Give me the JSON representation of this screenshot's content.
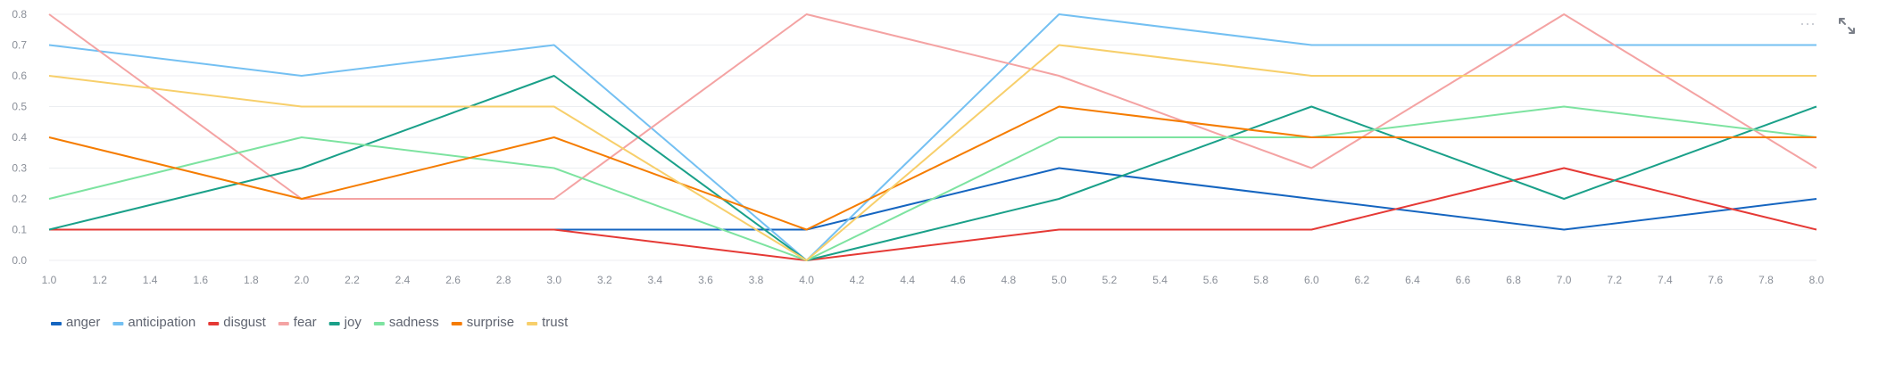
{
  "chart_data": {
    "type": "line",
    "x": [
      1,
      2,
      3,
      4,
      5,
      6,
      7,
      8
    ],
    "xlim": [
      1.0,
      8.0
    ],
    "ylim": [
      0.0,
      0.8
    ],
    "x_ticks": [
      "1.0",
      "1.2",
      "1.4",
      "1.6",
      "1.8",
      "2.0",
      "2.2",
      "2.4",
      "2.6",
      "2.8",
      "3.0",
      "3.2",
      "3.4",
      "3.6",
      "3.8",
      "4.0",
      "4.2",
      "4.4",
      "4.6",
      "4.8",
      "5.0",
      "5.2",
      "5.4",
      "5.6",
      "5.8",
      "6.0",
      "6.2",
      "6.4",
      "6.6",
      "6.8",
      "7.0",
      "7.2",
      "7.4",
      "7.6",
      "7.8",
      "8.0"
    ],
    "y_ticks": [
      "0.0",
      "0.1",
      "0.2",
      "0.3",
      "0.4",
      "0.5",
      "0.6",
      "0.7",
      "0.8"
    ],
    "grid": "horizontal",
    "legend_position": "bottom-left",
    "series": [
      {
        "name": "anger",
        "color": "#1565c0",
        "values": [
          0.1,
          0.1,
          0.1,
          0.1,
          0.3,
          0.2,
          0.1,
          0.2
        ]
      },
      {
        "name": "anticipation",
        "color": "#74c0f2",
        "values": [
          0.7,
          0.6,
          0.7,
          0.0,
          0.8,
          0.7,
          0.7,
          0.7
        ]
      },
      {
        "name": "disgust",
        "color": "#e53935",
        "values": [
          0.1,
          0.1,
          0.1,
          0.0,
          0.1,
          0.1,
          0.3,
          0.1
        ]
      },
      {
        "name": "fear",
        "color": "#f4a3a3",
        "values": [
          0.8,
          0.2,
          0.2,
          0.8,
          0.6,
          0.3,
          0.8,
          0.3
        ]
      },
      {
        "name": "joy",
        "color": "#1aa089",
        "values": [
          0.1,
          0.3,
          0.6,
          0.0,
          0.2,
          0.5,
          0.2,
          0.5
        ]
      },
      {
        "name": "sadness",
        "color": "#7de3a0",
        "values": [
          0.2,
          0.4,
          0.3,
          0.0,
          0.4,
          0.4,
          0.5,
          0.4
        ]
      },
      {
        "name": "surprise",
        "color": "#f57c00",
        "values": [
          0.4,
          0.2,
          0.4,
          0.1,
          0.5,
          0.4,
          0.4,
          0.4
        ]
      },
      {
        "name": "trust",
        "color": "#f7cf6b",
        "values": [
          0.6,
          0.5,
          0.5,
          0.0,
          0.7,
          0.6,
          0.6,
          0.6
        ]
      }
    ]
  },
  "toolbar": {
    "more_glyph": "···",
    "expand_icon": "expand-icon"
  }
}
